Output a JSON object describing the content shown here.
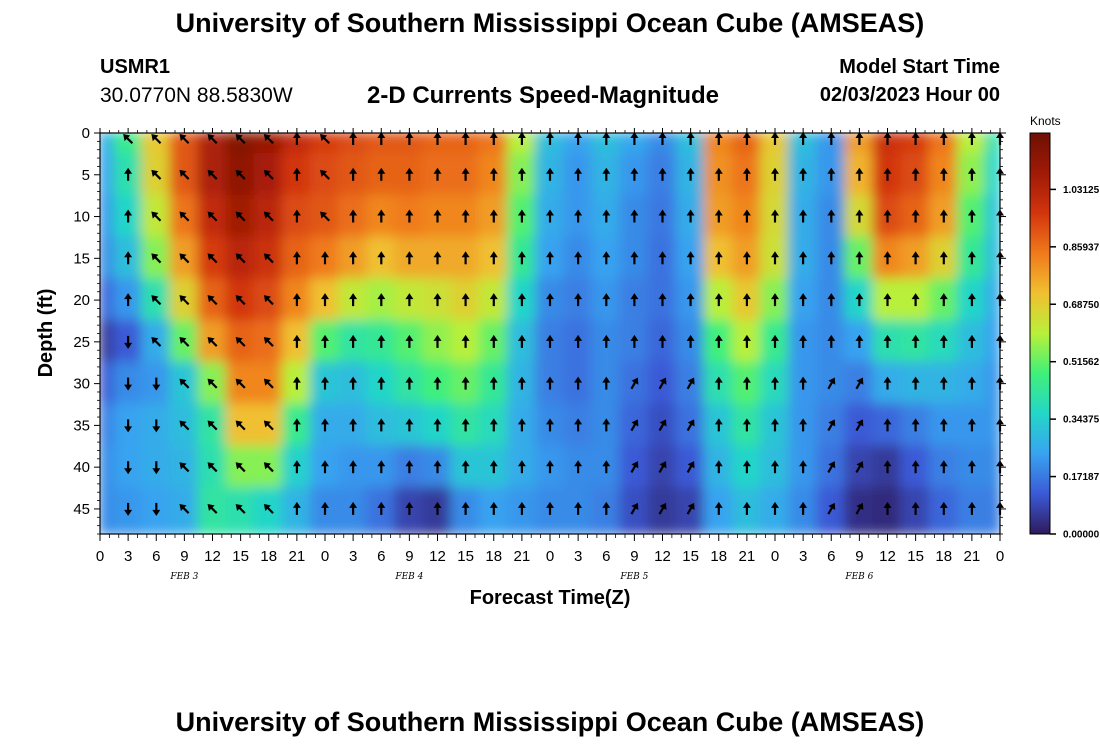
{
  "header": {
    "title": "University of Southern Mississippi Ocean Cube (AMSEAS)",
    "station": "USMR1",
    "coords": "30.0770N  88.5830W",
    "subtitle": "2-D Currents Speed-Magnitude",
    "model_start_label": "Model Start Time",
    "model_start_time": "02/03/2023 Hour 00"
  },
  "footer": {
    "title": "University of Southern Mississippi Ocean Cube (AMSEAS)"
  },
  "chart_data": {
    "type": "heatmap",
    "title": "2-D Currents Speed-Magnitude",
    "xlabel": "Forecast Time(Z)",
    "ylabel": "Depth (ft)",
    "x_ticks": [
      "0",
      "3",
      "6",
      "9",
      "12",
      "15",
      "18",
      "21",
      "0",
      "3",
      "6",
      "9",
      "12",
      "15",
      "18",
      "21",
      "0",
      "3",
      "6",
      "9",
      "12",
      "15",
      "18",
      "21",
      "0",
      "3",
      "6",
      "9",
      "12",
      "15",
      "18",
      "21",
      "0"
    ],
    "day_labels": [
      "FEB 3",
      "FEB 4",
      "FEB 5",
      "FEB 6"
    ],
    "y_ticks": [
      "0",
      "5",
      "10",
      "15",
      "20",
      "25",
      "30",
      "35",
      "40",
      "45"
    ],
    "xlim_hours": [
      0,
      96
    ],
    "ylim_ft": [
      0,
      48
    ],
    "colorbar": {
      "label": "Knots",
      "ticks": [
        "1.03125",
        "0.85937",
        "0.68750",
        "0.51562",
        "0.34375",
        "0.17187",
        "0.00000"
      ],
      "range": [
        0,
        1.2
      ],
      "colors": [
        "#2e1a5c",
        "#3b5ad6",
        "#38a3f0",
        "#24d6c8",
        "#3ff07a",
        "#b8f03a",
        "#f0c030",
        "#f07a1c",
        "#d2350e",
        "#a01a06",
        "#6e1004"
      ]
    },
    "speed_profiles": [
      {
        "hour": 0,
        "values": [
          0.26,
          0.24,
          0.22,
          0.2,
          0.14,
          0.06,
          0.12,
          0.18,
          0.2,
          0.2
        ]
      },
      {
        "hour": 3,
        "values": [
          0.45,
          0.4,
          0.36,
          0.3,
          0.22,
          0.12,
          0.2,
          0.24,
          0.24,
          0.22
        ]
      },
      {
        "hour": 6,
        "values": [
          0.7,
          0.68,
          0.62,
          0.55,
          0.4,
          0.26,
          0.22,
          0.26,
          0.26,
          0.24
        ]
      },
      {
        "hour": 9,
        "values": [
          0.9,
          0.9,
          0.85,
          0.78,
          0.68,
          0.52,
          0.32,
          0.3,
          0.28,
          0.26
        ]
      },
      {
        "hour": 12,
        "values": [
          1.05,
          1.05,
          1.0,
          0.95,
          0.88,
          0.78,
          0.55,
          0.42,
          0.4,
          0.42
        ]
      },
      {
        "hour": 15,
        "values": [
          1.15,
          1.12,
          1.08,
          1.02,
          0.96,
          0.88,
          0.82,
          0.72,
          0.55,
          0.4
        ]
      },
      {
        "hour": 18,
        "values": [
          1.1,
          1.06,
          1.02,
          0.98,
          0.92,
          0.86,
          0.82,
          0.72,
          0.55,
          0.36
        ]
      },
      {
        "hour": 21,
        "values": [
          1.0,
          0.96,
          0.92,
          0.88,
          0.82,
          0.72,
          0.6,
          0.45,
          0.35,
          0.28
        ]
      },
      {
        "hour": 24,
        "values": [
          0.95,
          0.92,
          0.9,
          0.84,
          0.72,
          0.5,
          0.32,
          0.26,
          0.24,
          0.2
        ]
      },
      {
        "hour": 27,
        "values": [
          0.92,
          0.9,
          0.86,
          0.78,
          0.62,
          0.42,
          0.3,
          0.26,
          0.22,
          0.2
        ]
      },
      {
        "hour": 30,
        "values": [
          0.9,
          0.88,
          0.82,
          0.72,
          0.58,
          0.44,
          0.36,
          0.3,
          0.22,
          0.16
        ]
      },
      {
        "hour": 33,
        "values": [
          0.9,
          0.88,
          0.84,
          0.76,
          0.62,
          0.5,
          0.42,
          0.32,
          0.18,
          0.08
        ]
      },
      {
        "hour": 36,
        "values": [
          0.88,
          0.86,
          0.82,
          0.76,
          0.64,
          0.56,
          0.48,
          0.36,
          0.2,
          0.06
        ]
      },
      {
        "hour": 39,
        "values": [
          0.88,
          0.86,
          0.82,
          0.76,
          0.68,
          0.6,
          0.52,
          0.42,
          0.32,
          0.2
        ]
      },
      {
        "hour": 42,
        "values": [
          0.85,
          0.82,
          0.78,
          0.72,
          0.62,
          0.52,
          0.44,
          0.38,
          0.32,
          0.24
        ]
      },
      {
        "hour": 45,
        "values": [
          0.6,
          0.55,
          0.5,
          0.44,
          0.36,
          0.3,
          0.28,
          0.26,
          0.26,
          0.22
        ]
      },
      {
        "hour": 48,
        "values": [
          0.3,
          0.28,
          0.26,
          0.24,
          0.2,
          0.18,
          0.18,
          0.2,
          0.22,
          0.2
        ]
      },
      {
        "hour": 51,
        "values": [
          0.24,
          0.22,
          0.22,
          0.2,
          0.18,
          0.16,
          0.16,
          0.18,
          0.2,
          0.2
        ]
      },
      {
        "hour": 54,
        "values": [
          0.3,
          0.28,
          0.26,
          0.24,
          0.22,
          0.2,
          0.2,
          0.2,
          0.2,
          0.18
        ]
      },
      {
        "hour": 57,
        "values": [
          0.25,
          0.22,
          0.2,
          0.2,
          0.18,
          0.18,
          0.16,
          0.14,
          0.12,
          0.1
        ]
      },
      {
        "hour": 60,
        "values": [
          0.2,
          0.18,
          0.17,
          0.16,
          0.16,
          0.14,
          0.12,
          0.1,
          0.08,
          0.06
        ]
      },
      {
        "hour": 63,
        "values": [
          0.3,
          0.28,
          0.26,
          0.24,
          0.22,
          0.2,
          0.18,
          0.16,
          0.12,
          0.08
        ]
      },
      {
        "hour": 66,
        "values": [
          0.82,
          0.8,
          0.78,
          0.72,
          0.6,
          0.48,
          0.4,
          0.32,
          0.28,
          0.24
        ]
      },
      {
        "hour": 69,
        "values": [
          0.88,
          0.85,
          0.82,
          0.78,
          0.7,
          0.6,
          0.5,
          0.42,
          0.36,
          0.3
        ]
      },
      {
        "hour": 72,
        "values": [
          0.7,
          0.68,
          0.66,
          0.64,
          0.55,
          0.45,
          0.38,
          0.32,
          0.3,
          0.26
        ]
      },
      {
        "hour": 75,
        "values": [
          0.3,
          0.28,
          0.26,
          0.26,
          0.24,
          0.22,
          0.22,
          0.22,
          0.22,
          0.2
        ]
      },
      {
        "hour": 78,
        "values": [
          0.22,
          0.22,
          0.2,
          0.2,
          0.2,
          0.2,
          0.2,
          0.18,
          0.16,
          0.12
        ]
      },
      {
        "hour": 81,
        "values": [
          0.78,
          0.74,
          0.66,
          0.52,
          0.36,
          0.24,
          0.18,
          0.12,
          0.08,
          0.04
        ]
      },
      {
        "hour": 84,
        "values": [
          0.98,
          0.96,
          0.92,
          0.82,
          0.6,
          0.4,
          0.26,
          0.14,
          0.06,
          0.03
        ]
      },
      {
        "hour": 87,
        "values": [
          0.95,
          0.92,
          0.88,
          0.78,
          0.6,
          0.42,
          0.28,
          0.18,
          0.12,
          0.08
        ]
      },
      {
        "hour": 90,
        "values": [
          0.85,
          0.82,
          0.78,
          0.68,
          0.52,
          0.38,
          0.28,
          0.22,
          0.18,
          0.14
        ]
      },
      {
        "hour": 93,
        "values": [
          0.6,
          0.56,
          0.5,
          0.44,
          0.36,
          0.3,
          0.26,
          0.22,
          0.2,
          0.18
        ]
      },
      {
        "hour": 96,
        "values": [
          0.4,
          0.36,
          0.32,
          0.3,
          0.26,
          0.24,
          0.22,
          0.22,
          0.2,
          0.18
        ]
      }
    ],
    "vector_depths_ft": [
      0,
      5,
      10,
      15,
      20,
      25,
      30,
      35,
      40,
      45
    ],
    "vector_hours": [
      3,
      6,
      9,
      12,
      15,
      18,
      21,
      24,
      27,
      30,
      33,
      36,
      39,
      42,
      45,
      48,
      51,
      54,
      57,
      60,
      63,
      66,
      69,
      72,
      75,
      78,
      81,
      84,
      87,
      90,
      93,
      96
    ],
    "vectors_deg": {
      "3": [
        225,
        270,
        270,
        270,
        270,
        90,
        90,
        90,
        90,
        90
      ],
      "6": [
        225,
        225,
        225,
        225,
        225,
        225,
        90,
        90,
        90,
        90
      ],
      "9": [
        225,
        225,
        225,
        225,
        225,
        225,
        225,
        225,
        225,
        225
      ],
      "12": [
        225,
        225,
        225,
        225,
        225,
        225,
        225,
        225,
        225,
        225
      ],
      "15": [
        225,
        225,
        225,
        225,
        225,
        225,
        225,
        225,
        225,
        225
      ],
      "18": [
        225,
        225,
        225,
        225,
        225,
        225,
        225,
        225,
        225,
        225
      ],
      "21": [
        270,
        270,
        270,
        270,
        270,
        270,
        270,
        270,
        270,
        270
      ],
      "24": [
        225,
        225,
        225,
        270,
        270,
        270,
        270,
        270,
        270,
        270
      ]
    }
  }
}
